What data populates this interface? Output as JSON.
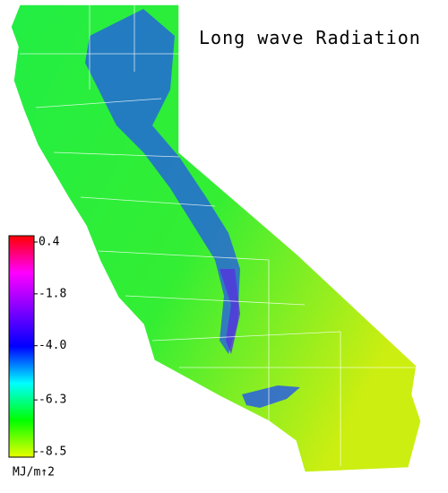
{
  "title": "Long wave Radiation",
  "colorbar": {
    "range": [
      -8.5,
      0.4
    ],
    "ticks": [
      0.4,
      -1.8,
      {
        "value": -4,
        "label": "-4.0"
      },
      -6.3,
      -8.5
    ],
    "unit": "MJ/m↑2",
    "colors": [
      "#e8ff00",
      "#00ff00",
      "#00ffff",
      "#0000ff",
      "#8000ff",
      "#ff00ff",
      "#ff0000"
    ]
  }
}
